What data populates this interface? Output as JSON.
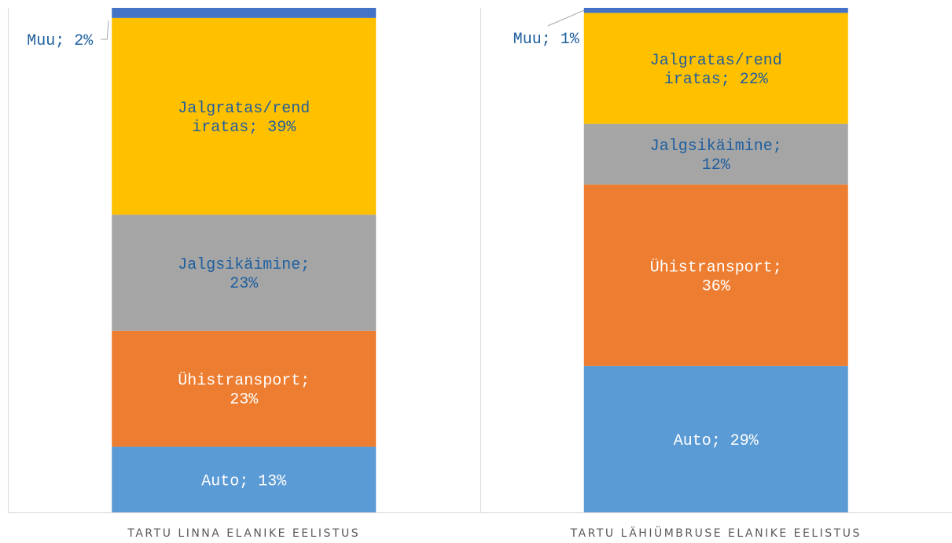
{
  "chart_data": {
    "type": "stacked_bar",
    "categories": [
      "TARTU LINNA ELANIKE EELISTUS",
      "TARTU LÄHIÜMBRUSE ELANIKE EELISTUS"
    ],
    "ylim": [
      0,
      100
    ],
    "series": [
      {
        "color": "#5b9bd5",
        "label_color": "#ffffff",
        "values": [
          13,
          29
        ],
        "value_labels": [
          "Auto; 13%",
          "Auto; 29%"
        ]
      },
      {
        "color": "#ed7d31",
        "label_color": "#ffffff",
        "values": [
          23,
          36
        ],
        "value_labels": [
          "Ühistransport; 23%",
          "Ühistransport; 36%"
        ]
      },
      {
        "color": "#a5a5a5",
        "label_color": "#1f5f9e",
        "values": [
          23,
          12
        ],
        "value_labels": [
          "Jalgsikäimine; 23%",
          "Jalgsikäimine; 12%"
        ]
      },
      {
        "color": "#ffc000",
        "label_color": "#1f5f9e",
        "values": [
          39,
          22
        ],
        "value_labels": [
          "Jalgratas/rendiratas; 39%",
          "Jalgratas/rendiratas; 22%"
        ]
      },
      {
        "color": "#4472c4",
        "label_color": "#1f5f9e",
        "values": [
          2,
          1
        ],
        "value_labels": [
          "Muu; 2%",
          "Muu; 1%"
        ]
      }
    ]
  }
}
